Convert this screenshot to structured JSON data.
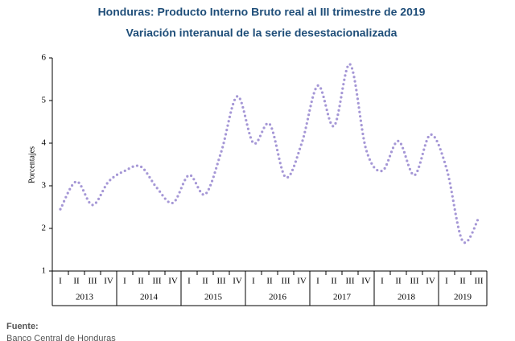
{
  "chart_data": {
    "type": "line",
    "title": "Honduras: Producto Interno Bruto real al III trimestre de 2019",
    "subtitle": "Variación interanual de la serie desestacionalizada",
    "y_label": "Porcentajes",
    "categories": [
      "I",
      "II",
      "III",
      "IV",
      "I",
      "II",
      "III",
      "IV",
      "I",
      "II",
      "III",
      "IV",
      "I",
      "II",
      "III",
      "IV",
      "I",
      "II",
      "III",
      "IV",
      "I",
      "II",
      "III",
      "IV",
      "I",
      "II",
      "III"
    ],
    "years": [
      "2013",
      "2014",
      "2015",
      "2016",
      "2017",
      "2018",
      "2019"
    ],
    "series": [
      {
        "name": "Variación interanual",
        "color": "#a597d6",
        "values": [
          2.45,
          3.1,
          2.55,
          3.1,
          3.35,
          3.45,
          2.95,
          2.6,
          3.25,
          2.8,
          3.8,
          5.1,
          4.0,
          4.45,
          3.2,
          4.0,
          5.35,
          4.4,
          5.85,
          3.85,
          3.35,
          4.05,
          3.25,
          4.2,
          3.4,
          1.7,
          2.25
        ]
      }
    ],
    "ylim": [
      1,
      6
    ],
    "yticks": [
      1,
      2,
      3,
      4,
      5,
      6
    ],
    "grid": false,
    "source_label": "Fuente:",
    "source": "Banco Central de Honduras"
  }
}
